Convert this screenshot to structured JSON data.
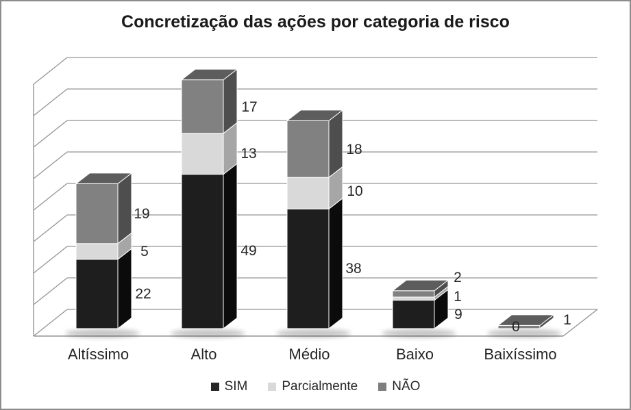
{
  "title": "Concretização das ações por categoria de risco",
  "legend": {
    "items": [
      {
        "label": "SIM",
        "color": "#262626"
      },
      {
        "label": "Parcialmente",
        "color": "#d9d9d9"
      },
      {
        "label": "NÃO",
        "color": "#7f7f7f"
      }
    ]
  },
  "colors": {
    "background": "#ffffff",
    "border": "#8c8c8c",
    "grid": "#949494",
    "text": "#262626"
  },
  "chart_data": {
    "type": "bar",
    "stacked": true,
    "projection": "3d",
    "title": "Concretização das ações por categoria de risco",
    "categories": [
      "Altíssimo",
      "Alto",
      "Médio",
      "Baixo",
      "Baixíssimo"
    ],
    "series": [
      {
        "name": "SIM",
        "values": [
          22,
          49,
          38,
          9,
          0
        ],
        "color": {
          "front": "#1e1e1e",
          "side": "#0b0b0b",
          "top": "#3c3c3c"
        }
      },
      {
        "name": "Parcialmente",
        "values": [
          5,
          13,
          10,
          1,
          0
        ],
        "color": {
          "front": "#d9d9d9",
          "side": "#a6a6a6",
          "top": "#eaeaea"
        }
      },
      {
        "name": "NÃO",
        "values": [
          19,
          17,
          18,
          2,
          1
        ],
        "color": {
          "front": "#818181",
          "side": "#4e4e4e",
          "top": "#5d5d5d"
        }
      }
    ],
    "totals": [
      46,
      79,
      66,
      12,
      1
    ],
    "ylim": [
      0,
      80
    ],
    "y_major_unit": 10,
    "grid": true,
    "legend_position": "bottom",
    "data_labels": [
      [
        {
          "text": "22",
          "x": 209,
          "y": 429
        },
        {
          "text": "5",
          "x": 211,
          "y": 367
        },
        {
          "text": "19",
          "x": 207,
          "y": 312
        }
      ],
      [
        {
          "text": "49",
          "x": 363,
          "y": 366
        },
        {
          "text": "13",
          "x": 363,
          "y": 224
        },
        {
          "text": "17",
          "x": 364,
          "y": 156
        }
      ],
      [
        {
          "text": "38",
          "x": 516,
          "y": 392
        },
        {
          "text": "10",
          "x": 518,
          "y": 279
        },
        {
          "text": "18",
          "x": 517,
          "y": 218
        }
      ],
      [
        {
          "text": "9",
          "x": 669,
          "y": 459
        },
        {
          "text": "1",
          "x": 668,
          "y": 433
        },
        {
          "text": "2",
          "x": 668,
          "y": 405
        }
      ],
      [
        {
          "text": "0",
          "x": 753,
          "y": 477
        },
        {
          "text": "1",
          "x": 828,
          "y": 467
        }
      ]
    ]
  }
}
